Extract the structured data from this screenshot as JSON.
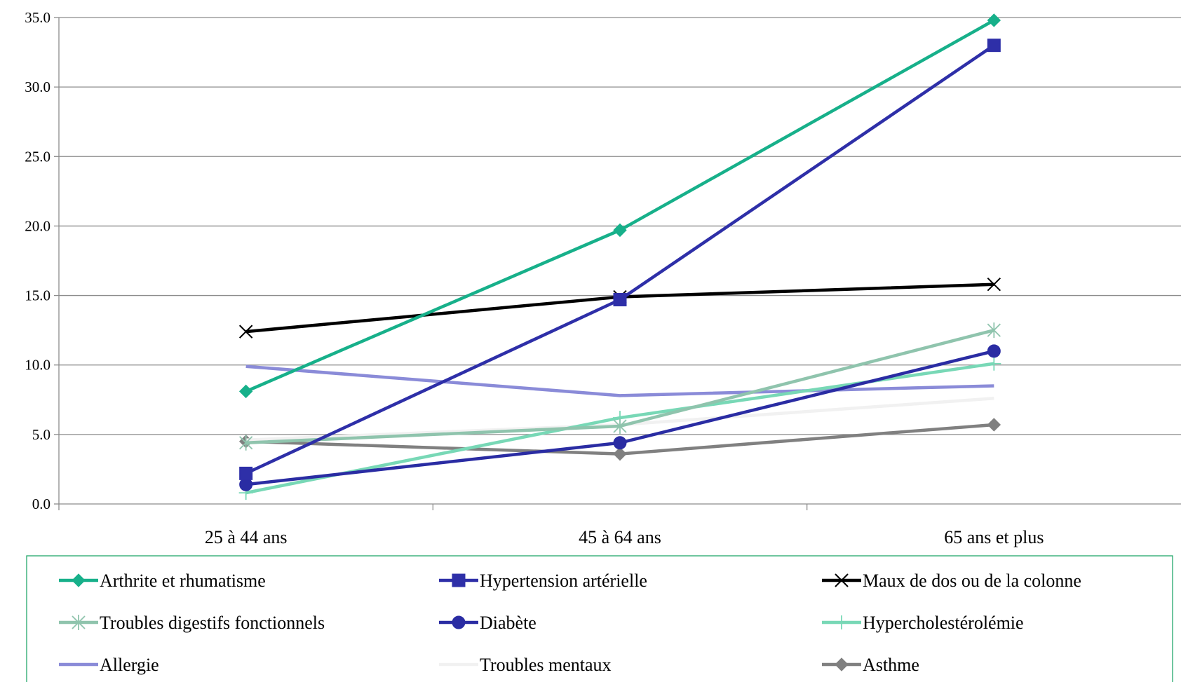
{
  "chart_data": {
    "type": "line",
    "categories": [
      "25 à 44 ans",
      "45 à 64 ans",
      "65 ans et plus"
    ],
    "ylim": [
      0,
      35
    ],
    "ytick_step": 5,
    "ytick_labels": [
      "0.0",
      "5.0",
      "10.0",
      "15.0",
      "20.0",
      "25.0",
      "30.0",
      "35.0"
    ],
    "grid": true,
    "legend_position": "bottom",
    "series": [
      {
        "name": "Arthrite et rhumatisme",
        "values": [
          8.1,
          19.7,
          34.8
        ],
        "color": "#17b08a",
        "marker": "diamond"
      },
      {
        "name": "Hypertension artérielle",
        "values": [
          2.2,
          14.7,
          33.0
        ],
        "color": "#2e2fa8",
        "marker": "square"
      },
      {
        "name": "Maux de dos ou de la colonne",
        "values": [
          12.4,
          14.9,
          15.8
        ],
        "color": "#000000",
        "marker": "x"
      },
      {
        "name": "Troubles digestifs fonctionnels",
        "values": [
          4.4,
          5.6,
          12.5
        ],
        "color": "#8fc4ad",
        "marker": "star"
      },
      {
        "name": "Diabète",
        "values": [
          1.4,
          4.4,
          11.0
        ],
        "color": "#2a2ca3",
        "marker": "circle"
      },
      {
        "name": "Hypercholestérolémie",
        "values": [
          0.8,
          6.2,
          10.1
        ],
        "color": "#78d8b6",
        "marker": "plus"
      },
      {
        "name": "Allergie",
        "values": [
          9.9,
          7.8,
          8.5
        ],
        "color": "#8a8bd8",
        "marker": "none"
      },
      {
        "name": "Troubles mentaux",
        "values": [
          4.6,
          5.7,
          7.6
        ],
        "color": "#f1f1f1",
        "marker": "none"
      },
      {
        "name": "Asthme",
        "values": [
          4.5,
          3.6,
          5.7
        ],
        "color": "#808080",
        "marker": "diamond"
      }
    ]
  }
}
